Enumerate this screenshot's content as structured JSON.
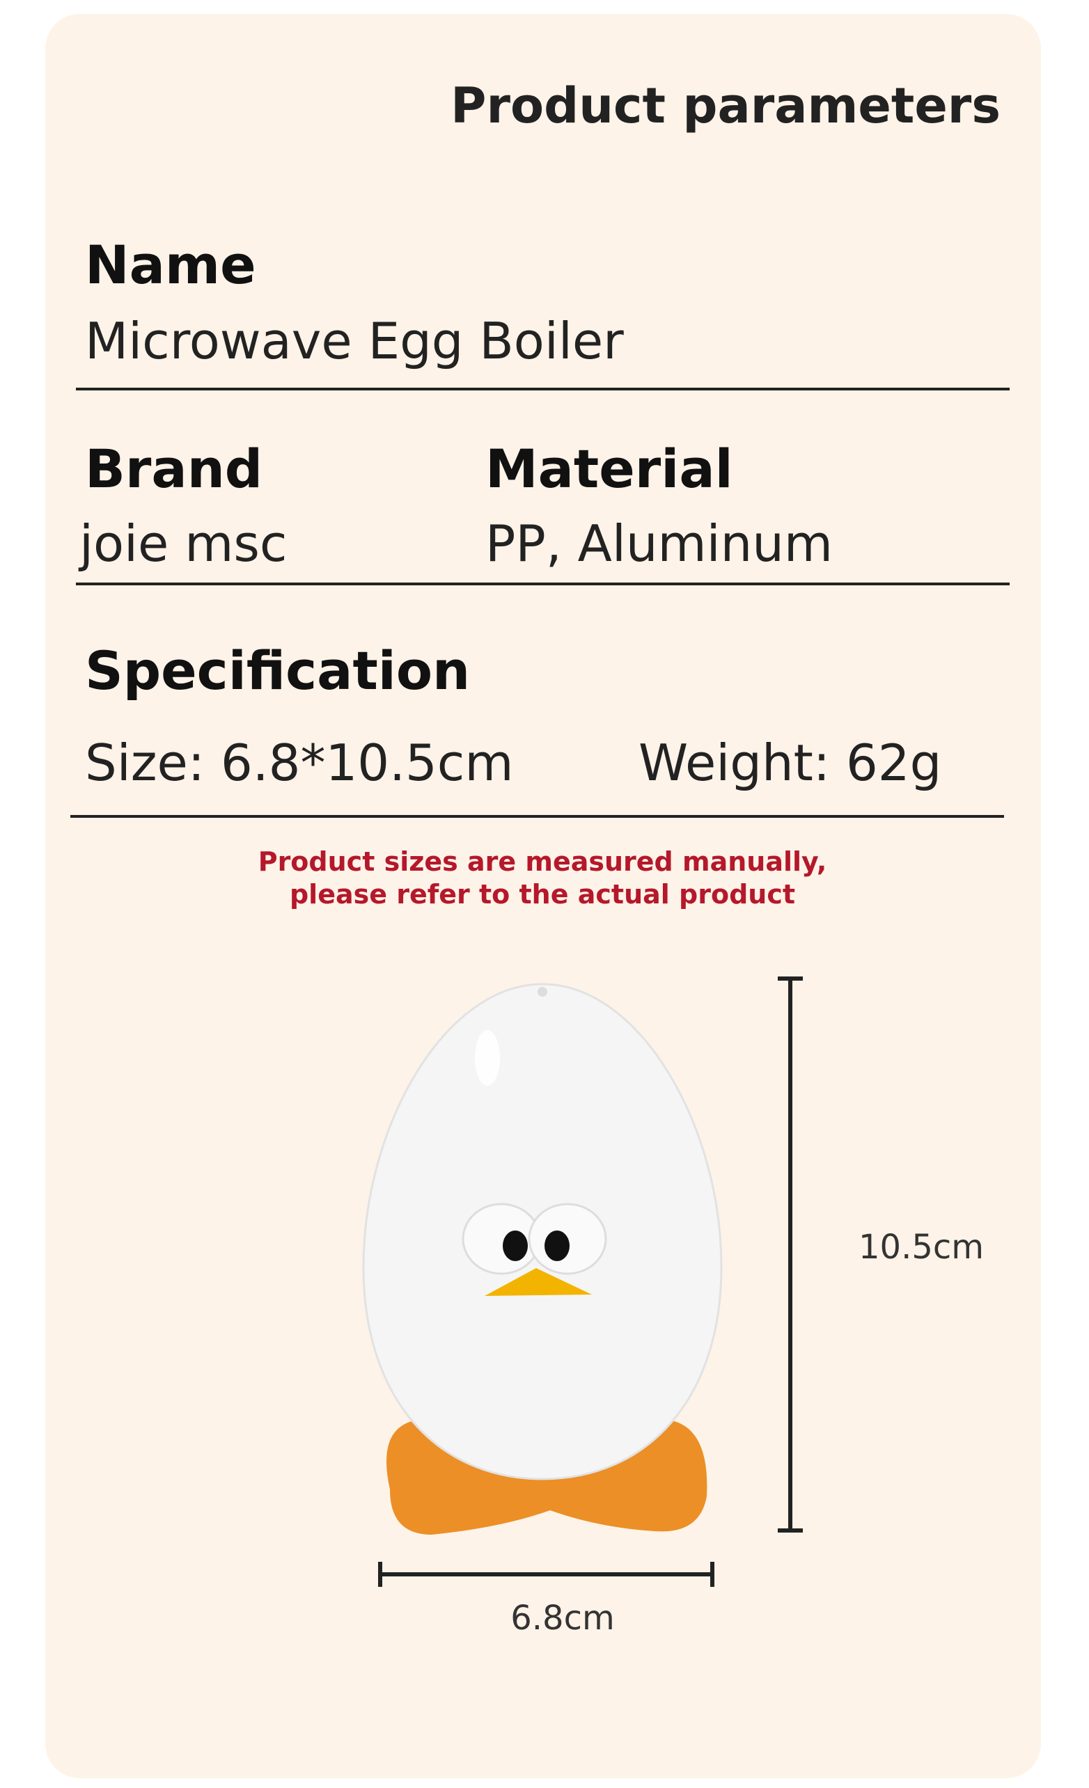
{
  "header": {
    "title": "Product parameters"
  },
  "fields": [
    {
      "label": "Name",
      "value": "Microwave Egg Boiler"
    },
    {
      "label": "Brand",
      "value": "joie msc"
    },
    {
      "label": "Material",
      "value": "PP, Aluminum"
    },
    {
      "label": "Specification",
      "size": "Size: 6.8*10.5cm",
      "weight": "Weight: 62g"
    }
  ],
  "note": [
    "Product sizes are measured manually,",
    "please refer to the actual product"
  ],
  "dimensions": {
    "height": "10.5cm",
    "width": "6.8cm"
  }
}
